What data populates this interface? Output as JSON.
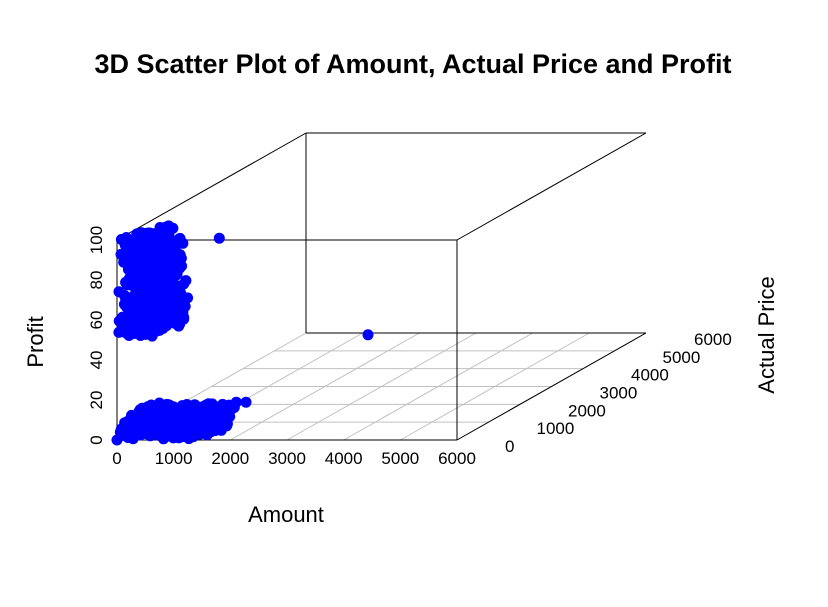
{
  "chart_data": {
    "type": "scatter",
    "projection": "3d",
    "title": "3D Scatter Plot of Amount, Actual Price and Profit",
    "xlabel": "Amount",
    "ylabel": "Actual Price",
    "zlabel": "Profit",
    "xlim": [
      0,
      6000
    ],
    "ylim": [
      0,
      6000
    ],
    "zlim": [
      0,
      100
    ],
    "x_ticks": [
      "0",
      "1000",
      "2000",
      "3000",
      "4000",
      "5000",
      "6000"
    ],
    "y_ticks": [
      "0",
      "1000",
      "2000",
      "3000",
      "4000",
      "5000",
      "6000"
    ],
    "z_ticks": [
      "0",
      "20",
      "40",
      "60",
      "80",
      "100"
    ],
    "grid": true,
    "point_color": "#0000ff",
    "series": [
      {
        "points": [
          {
            "x": 0,
            "y": 0,
            "z": 0
          },
          {
            "x": 1750,
            "y": 100,
            "z": 100
          },
          {
            "x": 1150,
            "y": 5900,
            "z": 0
          },
          {
            "x": 1180,
            "y": 120,
            "z": 70
          },
          {
            "x": 820,
            "y": 100,
            "z": 80
          },
          {
            "x": 900,
            "y": 100,
            "z": 88
          },
          {
            "x": 1050,
            "y": 100,
            "z": 85
          },
          {
            "x": 850,
            "y": 120,
            "z": 98
          },
          {
            "x": 1000,
            "y": 200,
            "z": 99
          },
          {
            "x": 1080,
            "y": 150,
            "z": 97
          },
          {
            "x": 1000,
            "y": 80,
            "z": 60
          },
          {
            "x": 950,
            "y": 120,
            "z": 75
          },
          {
            "x": 1180,
            "y": 900,
            "z": 10
          },
          {
            "x": 1130,
            "y": 850,
            "z": 9
          },
          {
            "x": 850,
            "y": 600,
            "z": 8
          },
          {
            "x": 1520,
            "y": 700,
            "z": 10
          },
          {
            "x": 1550,
            "y": 1000,
            "z": 10
          },
          {
            "x": 1680,
            "y": 700,
            "z": 10
          },
          {
            "x": 1720,
            "y": 1000,
            "z": 10
          }
        ]
      }
    ],
    "clusters": [
      {
        "x": [
          0,
          550
        ],
        "y": [
          50,
          900
        ],
        "z": [
          50,
          100
        ],
        "n": 500
      },
      {
        "x": [
          600,
          1050
        ],
        "y": [
          30,
          350
        ],
        "z": [
          55,
          100
        ],
        "n": 110
      },
      {
        "x": [
          0,
          1550
        ],
        "y": [
          0,
          1000
        ],
        "z": [
          0,
          10
        ],
        "n": 600
      }
    ]
  }
}
